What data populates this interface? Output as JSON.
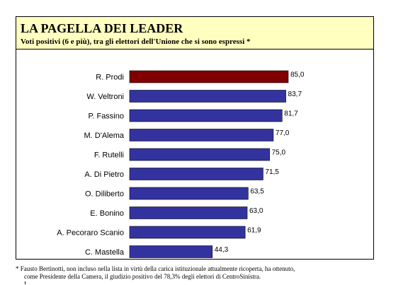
{
  "title": "LA PAGELLA DEI LEADER",
  "subtitle": "Voti positivi (6 e più), tra gli elettori dell'Unione che si sono espressi *",
  "footnote": {
    "line1": "* Fausto Bertinotti, non incluso nella lista in virtù della carica istituzionale attualmente ricoperta, ha ottenuto,",
    "line2": "come Presidente della Camera, il giudizio positivo del 78,3% degli elettori di CentroSinistra."
  },
  "colors": {
    "header_bg": "#ffffc0",
    "highlight_bar": "#800000",
    "bar": "#3333a0"
  },
  "chart_data": {
    "type": "bar",
    "orientation": "horizontal",
    "categories": [
      "R. Prodi",
      "W. Veltroni",
      "P. Fassino",
      "M. D'Alema",
      "F. Rutelli",
      "A. Di Pietro",
      "O. Diliberto",
      "E. Bonino",
      "A. Pecoraro Scanio",
      "C. Mastella"
    ],
    "values": [
      85.0,
      83.7,
      81.7,
      77.0,
      75.0,
      71.5,
      63.5,
      63.0,
      61.9,
      44.3
    ],
    "value_labels": [
      "85,0",
      "83,7",
      "81,7",
      "77,0",
      "75,0",
      "71,5",
      "63,5",
      "63,0",
      "61,9",
      "44,3"
    ],
    "highlight_index": 0,
    "xlim": [
      0,
      100
    ],
    "grid": false,
    "axes_visible": false
  }
}
